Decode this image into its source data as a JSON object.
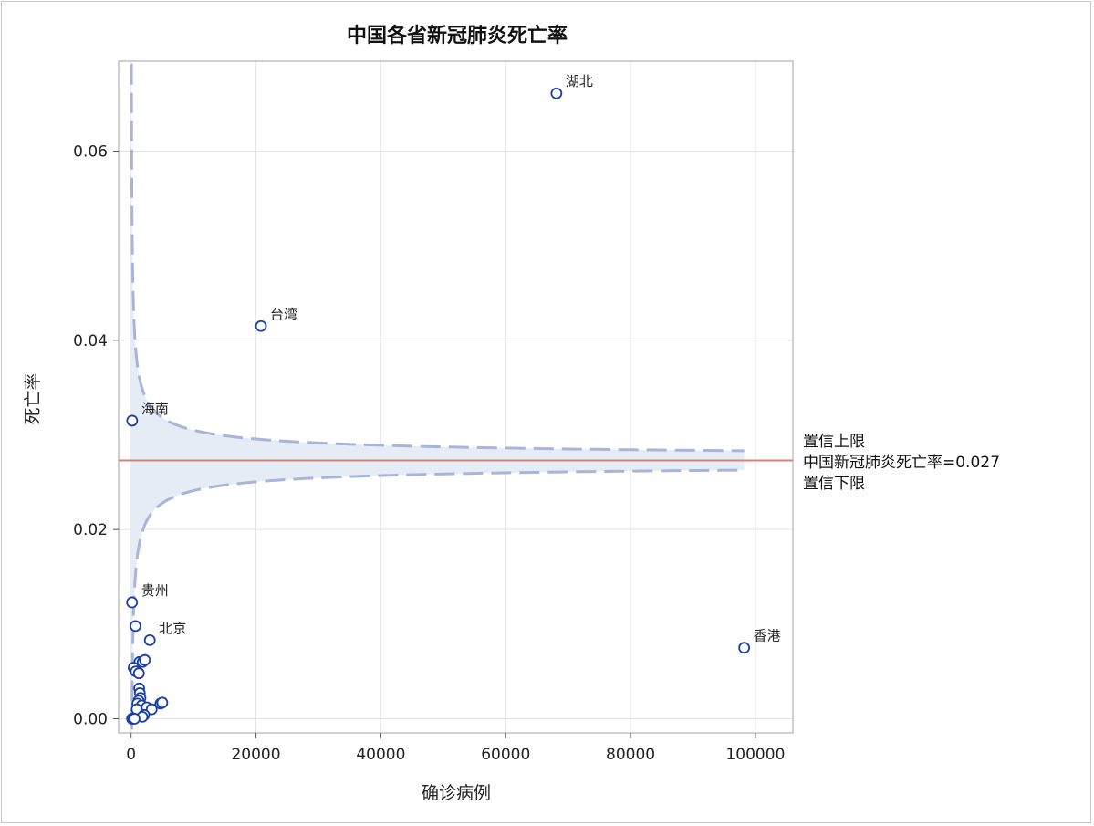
{
  "chart_data": {
    "type": "scatter",
    "title": "中国各省新冠肺炎死亡率",
    "xlabel": "确诊病例",
    "ylabel": "死亡率",
    "xlim": [
      -2000,
      106000
    ],
    "ylim": [
      -0.0015,
      0.0695
    ],
    "xticks": [
      0,
      20000,
      40000,
      60000,
      80000,
      100000
    ],
    "xtick_labels": [
      "0",
      "20000",
      "40000",
      "60000",
      "80000",
      "100000"
    ],
    "yticks": [
      0.0,
      0.02,
      0.04,
      0.06
    ],
    "ytick_labels": [
      "0.00",
      "0.02",
      "0.04",
      "0.06"
    ],
    "grid": true,
    "reference_line": {
      "value": 0.0273,
      "label": "中国新冠肺炎死亡率=0.027",
      "color": "#d4857a"
    },
    "band_labels": {
      "upper": "置信上限",
      "lower": "置信下限"
    },
    "band_color": "#e6ecf5",
    "band_line_color": "#a8b5d8",
    "point_color": "#1a40a8",
    "points": [
      {
        "x": 68128,
        "y": 0.0661,
        "label": "湖北"
      },
      {
        "x": 20800,
        "y": 0.0415,
        "label": "台湾"
      },
      {
        "x": 171,
        "y": 0.0315,
        "label": "海南"
      },
      {
        "x": 147,
        "y": 0.0123,
        "label": "贵州"
      },
      {
        "x": 3000,
        "y": 0.0083,
        "label": "北京"
      },
      {
        "x": 98200,
        "y": 0.0075,
        "label": "香港"
      },
      {
        "x": 700,
        "y": 0.0098,
        "label": ""
      },
      {
        "x": 1350,
        "y": 0.006,
        "label": ""
      },
      {
        "x": 1850,
        "y": 0.006,
        "label": ""
      },
      {
        "x": 2200,
        "y": 0.0062,
        "label": ""
      },
      {
        "x": 400,
        "y": 0.0054,
        "label": ""
      },
      {
        "x": 750,
        "y": 0.005,
        "label": ""
      },
      {
        "x": 1250,
        "y": 0.0048,
        "label": ""
      },
      {
        "x": 1300,
        "y": 0.0032,
        "label": ""
      },
      {
        "x": 1400,
        "y": 0.0027,
        "label": ""
      },
      {
        "x": 1500,
        "y": 0.0022,
        "label": ""
      },
      {
        "x": 1200,
        "y": 0.0019,
        "label": ""
      },
      {
        "x": 1000,
        "y": 0.0016,
        "label": ""
      },
      {
        "x": 1700,
        "y": 0.0014,
        "label": ""
      },
      {
        "x": 2500,
        "y": 0.0012,
        "label": ""
      },
      {
        "x": 900,
        "y": 0.001,
        "label": ""
      },
      {
        "x": 4700,
        "y": 0.0016,
        "label": ""
      },
      {
        "x": 5000,
        "y": 0.0017,
        "label": ""
      },
      {
        "x": 3300,
        "y": 0.001,
        "label": ""
      },
      {
        "x": 2100,
        "y": 0.0004,
        "label": ""
      },
      {
        "x": 1800,
        "y": 0.0002,
        "label": ""
      },
      {
        "x": 150,
        "y": 0.0,
        "label": ""
      },
      {
        "x": 300,
        "y": 0.0,
        "label": ""
      },
      {
        "x": 550,
        "y": 0.0,
        "label": ""
      }
    ]
  }
}
